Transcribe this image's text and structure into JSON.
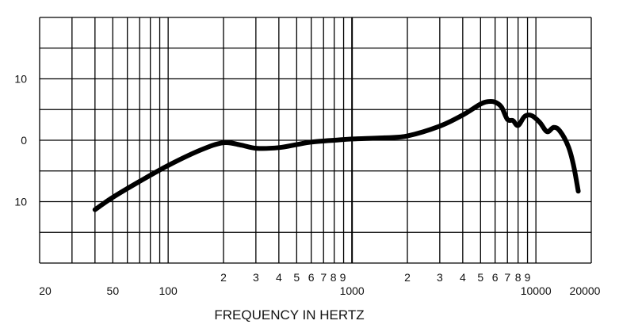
{
  "chart_data": {
    "type": "line",
    "title": "",
    "xlabel": "FREQUENCY IN HERTZ",
    "ylabel": "",
    "x_scale": "log",
    "xlim": [
      20,
      20000
    ],
    "ylim": [
      -20,
      20
    ],
    "grid": true,
    "x_tick_labels": [
      {
        "value": 20,
        "label": "20"
      },
      {
        "value": 50,
        "label": "50"
      },
      {
        "value": 100,
        "label": "100"
      },
      {
        "value": 200,
        "label": "2"
      },
      {
        "value": 300,
        "label": "3"
      },
      {
        "value": 400,
        "label": "4"
      },
      {
        "value": 500,
        "label": "5"
      },
      {
        "value": 600,
        "label": "6"
      },
      {
        "value": 700,
        "label": "7"
      },
      {
        "value": 800,
        "label": "8"
      },
      {
        "value": 900,
        "label": "9"
      },
      {
        "value": 1000,
        "label": "1000"
      },
      {
        "value": 2000,
        "label": "2"
      },
      {
        "value": 3000,
        "label": "3"
      },
      {
        "value": 4000,
        "label": "4"
      },
      {
        "value": 5000,
        "label": "5"
      },
      {
        "value": 6000,
        "label": "6"
      },
      {
        "value": 7000,
        "label": "7"
      },
      {
        "value": 8000,
        "label": "8"
      },
      {
        "value": 9000,
        "label": "9"
      },
      {
        "value": 10000,
        "label": "10000"
      },
      {
        "value": 20000,
        "label": "20000"
      }
    ],
    "y_tick_labels": [
      {
        "value": 10,
        "label": "10"
      },
      {
        "value": 0,
        "label": "0"
      },
      {
        "value": -10,
        "label": "10"
      }
    ],
    "series": [
      {
        "color": "#000000",
        "x": [
          40,
          50,
          70,
          100,
          150,
          200,
          250,
          300,
          400,
          500,
          600,
          800,
          1000,
          1500,
          2000,
          3000,
          4000,
          5000,
          5500,
          6000,
          6500,
          7000,
          7500,
          8000,
          8700,
          9500,
          10500,
          11500,
          12500,
          13500,
          15000,
          16000,
          17000
        ],
        "values": [
          -11.3,
          -9.3,
          -6.7,
          -4.1,
          -1.6,
          -0.4,
          -0.8,
          -1.3,
          -1.2,
          -0.7,
          -0.3,
          0.0,
          0.2,
          0.4,
          0.7,
          2.3,
          4.1,
          5.9,
          6.3,
          6.2,
          5.4,
          3.4,
          3.2,
          2.4,
          3.9,
          4.0,
          2.9,
          1.4,
          2.1,
          1.5,
          -1.0,
          -4.0,
          -8.3
        ]
      }
    ]
  }
}
